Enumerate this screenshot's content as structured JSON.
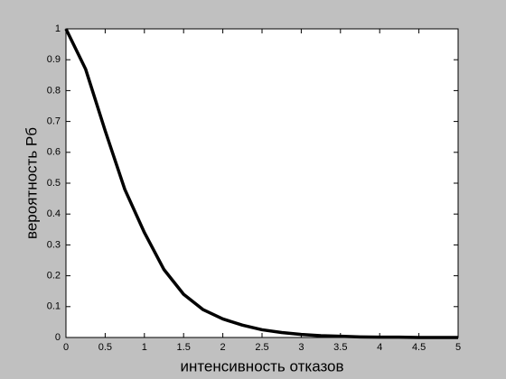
{
  "chart_data": {
    "type": "line",
    "x_label": "интенсивность отказов",
    "y_label": "вероятность Рб",
    "x": [
      0,
      0.25,
      0.5,
      0.75,
      1,
      1.25,
      1.5,
      1.75,
      2,
      2.25,
      2.5,
      2.75,
      3,
      3.25,
      3.5,
      3.75,
      4,
      4.25,
      4.5,
      4.75,
      5
    ],
    "series": [
      {
        "color": "#000000",
        "values": [
          1,
          0.87,
          0.67,
          0.48,
          0.34,
          0.22,
          0.14,
          0.09,
          0.06,
          0.04,
          0.025,
          0.016,
          0.01,
          0.006,
          0.004,
          0.002,
          0.001,
          0.001,
          0,
          0,
          0
        ]
      }
    ],
    "xlim": [
      0,
      5
    ],
    "ylim": [
      0,
      1
    ],
    "xticks": [
      0,
      0.5,
      1,
      1.5,
      2,
      2.5,
      3,
      3.5,
      4,
      4.5,
      5
    ],
    "yticks": [
      0,
      0.1,
      0.2,
      0.3,
      0.4,
      0.5,
      0.6,
      0.7,
      0.8,
      0.9,
      1
    ],
    "grid": false
  }
}
